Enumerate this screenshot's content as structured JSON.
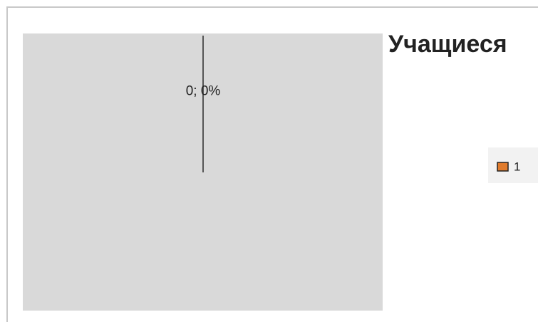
{
  "chart_data": {
    "type": "pie",
    "title": "Учащиеся",
    "categories": [
      "1"
    ],
    "values": [
      0
    ],
    "value_labels": [
      "0; 0%"
    ],
    "color": "#e07b2c"
  }
}
